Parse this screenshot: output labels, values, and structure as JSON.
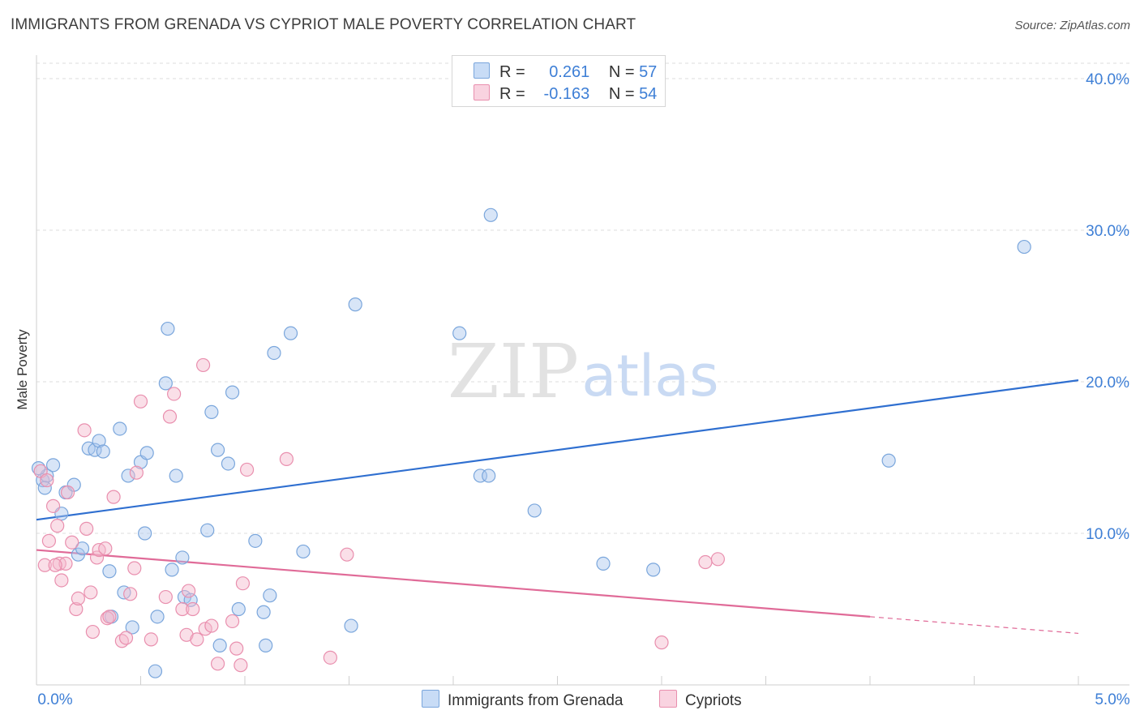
{
  "header": {
    "title": "IMMIGRANTS FROM GRENADA VS CYPRIOT MALE POVERTY CORRELATION CHART",
    "source": "Source: ZipAtlas.com"
  },
  "watermark": {
    "zip": "ZIP",
    "atlas": "atlas"
  },
  "legend": {
    "rows": [
      {
        "r_label": "R =",
        "r_value": "0.261",
        "n_label": "N =",
        "n_value": "57",
        "color": "#a9c6ee"
      },
      {
        "r_label": "R =",
        "r_value": "-0.163",
        "n_label": "N =",
        "n_value": "54",
        "color": "#f4b8cb"
      }
    ]
  },
  "chart_data": {
    "type": "scatter",
    "title": "IMMIGRANTS FROM GRENADA VS CYPRIOT MALE POVERTY CORRELATION CHART",
    "xlabel": "",
    "ylabel": "Male Poverty",
    "xlim": [
      0,
      5
    ],
    "ylim": [
      0,
      40
    ],
    "x_tick_labels": [
      "0.0%",
      "5.0%"
    ],
    "y_tick_labels": [
      "10.0%",
      "20.0%",
      "30.0%",
      "40.0%"
    ],
    "y_ticks": [
      10,
      20,
      30,
      40
    ],
    "grid": true,
    "legend_position": "bottom-center",
    "series": [
      {
        "name": "Immigrants from Grenada",
        "color": "#a9c6ee",
        "edge_color": "#7aa6dc",
        "line_color": "#2f6fd0",
        "trend": {
          "x": [
            0.0,
            5.0
          ],
          "y": [
            10.9,
            20.1
          ],
          "solid_until": 5.0
        },
        "points": [
          [
            0.03,
            13.5
          ],
          [
            0.05,
            13.8
          ],
          [
            0.08,
            14.5
          ],
          [
            0.12,
            11.3
          ],
          [
            0.14,
            12.7
          ],
          [
            0.18,
            13.2
          ],
          [
            0.2,
            8.6
          ],
          [
            0.22,
            9.0
          ],
          [
            0.25,
            15.6
          ],
          [
            0.28,
            15.5
          ],
          [
            0.3,
            16.1
          ],
          [
            0.32,
            15.4
          ],
          [
            0.35,
            7.5
          ],
          [
            0.36,
            4.5
          ],
          [
            0.4,
            16.9
          ],
          [
            0.42,
            6.1
          ],
          [
            0.44,
            13.8
          ],
          [
            0.46,
            3.8
          ],
          [
            0.5,
            14.7
          ],
          [
            0.52,
            10.0
          ],
          [
            0.53,
            15.3
          ],
          [
            0.57,
            0.9
          ],
          [
            0.58,
            4.5
          ],
          [
            0.62,
            19.9
          ],
          [
            0.63,
            23.5
          ],
          [
            0.65,
            7.6
          ],
          [
            0.67,
            13.8
          ],
          [
            0.7,
            8.4
          ],
          [
            0.71,
            5.8
          ],
          [
            0.74,
            5.6
          ],
          [
            0.82,
            10.2
          ],
          [
            0.84,
            18.0
          ],
          [
            0.87,
            15.5
          ],
          [
            0.88,
            2.6
          ],
          [
            0.92,
            14.6
          ],
          [
            0.94,
            19.3
          ],
          [
            0.97,
            5.0
          ],
          [
            1.05,
            9.5
          ],
          [
            1.09,
            4.8
          ],
          [
            1.1,
            2.6
          ],
          [
            1.12,
            5.9
          ],
          [
            1.14,
            21.9
          ],
          [
            1.22,
            23.2
          ],
          [
            1.28,
            8.8
          ],
          [
            1.51,
            3.9
          ],
          [
            1.53,
            25.1
          ],
          [
            2.03,
            23.2
          ],
          [
            2.13,
            13.8
          ],
          [
            2.17,
            13.8
          ],
          [
            2.18,
            31.0
          ],
          [
            2.39,
            11.5
          ],
          [
            2.72,
            8.0
          ],
          [
            2.96,
            7.6
          ],
          [
            4.09,
            14.8
          ],
          [
            4.74,
            28.9
          ],
          [
            0.01,
            14.3
          ],
          [
            0.04,
            13.0
          ]
        ]
      },
      {
        "name": "Cypriots",
        "color": "#f4b8cb",
        "edge_color": "#e98fae",
        "line_color": "#e06b98",
        "trend": {
          "x": [
            0.0,
            5.0
          ],
          "y": [
            8.9,
            3.4
          ],
          "solid_until": 4.0
        },
        "points": [
          [
            0.04,
            7.9
          ],
          [
            0.06,
            9.5
          ],
          [
            0.08,
            11.8
          ],
          [
            0.1,
            10.5
          ],
          [
            0.11,
            8.0
          ],
          [
            0.12,
            6.9
          ],
          [
            0.14,
            8.0
          ],
          [
            0.15,
            12.7
          ],
          [
            0.17,
            9.4
          ],
          [
            0.19,
            5.0
          ],
          [
            0.2,
            5.7
          ],
          [
            0.23,
            16.8
          ],
          [
            0.24,
            10.3
          ],
          [
            0.26,
            6.1
          ],
          [
            0.27,
            3.5
          ],
          [
            0.29,
            8.4
          ],
          [
            0.3,
            8.9
          ],
          [
            0.33,
            9.0
          ],
          [
            0.34,
            4.4
          ],
          [
            0.35,
            4.5
          ],
          [
            0.37,
            12.4
          ],
          [
            0.41,
            2.9
          ],
          [
            0.43,
            3.1
          ],
          [
            0.45,
            6.0
          ],
          [
            0.47,
            7.7
          ],
          [
            0.48,
            14.0
          ],
          [
            0.5,
            18.7
          ],
          [
            0.55,
            3.0
          ],
          [
            0.62,
            5.8
          ],
          [
            0.64,
            17.7
          ],
          [
            0.66,
            19.2
          ],
          [
            0.7,
            5.0
          ],
          [
            0.72,
            3.3
          ],
          [
            0.73,
            6.2
          ],
          [
            0.75,
            5.0
          ],
          [
            0.77,
            3.0
          ],
          [
            0.8,
            21.1
          ],
          [
            0.81,
            3.7
          ],
          [
            0.84,
            3.9
          ],
          [
            0.87,
            1.4
          ],
          [
            0.94,
            4.2
          ],
          [
            0.96,
            2.4
          ],
          [
            0.98,
            1.3
          ],
          [
            0.99,
            6.7
          ],
          [
            1.01,
            14.2
          ],
          [
            1.2,
            14.9
          ],
          [
            1.41,
            1.8
          ],
          [
            1.49,
            8.6
          ],
          [
            3.0,
            2.8
          ],
          [
            3.21,
            8.1
          ],
          [
            3.27,
            8.3
          ],
          [
            0.02,
            14.1
          ],
          [
            0.05,
            13.5
          ],
          [
            0.09,
            7.9
          ]
        ]
      }
    ]
  }
}
